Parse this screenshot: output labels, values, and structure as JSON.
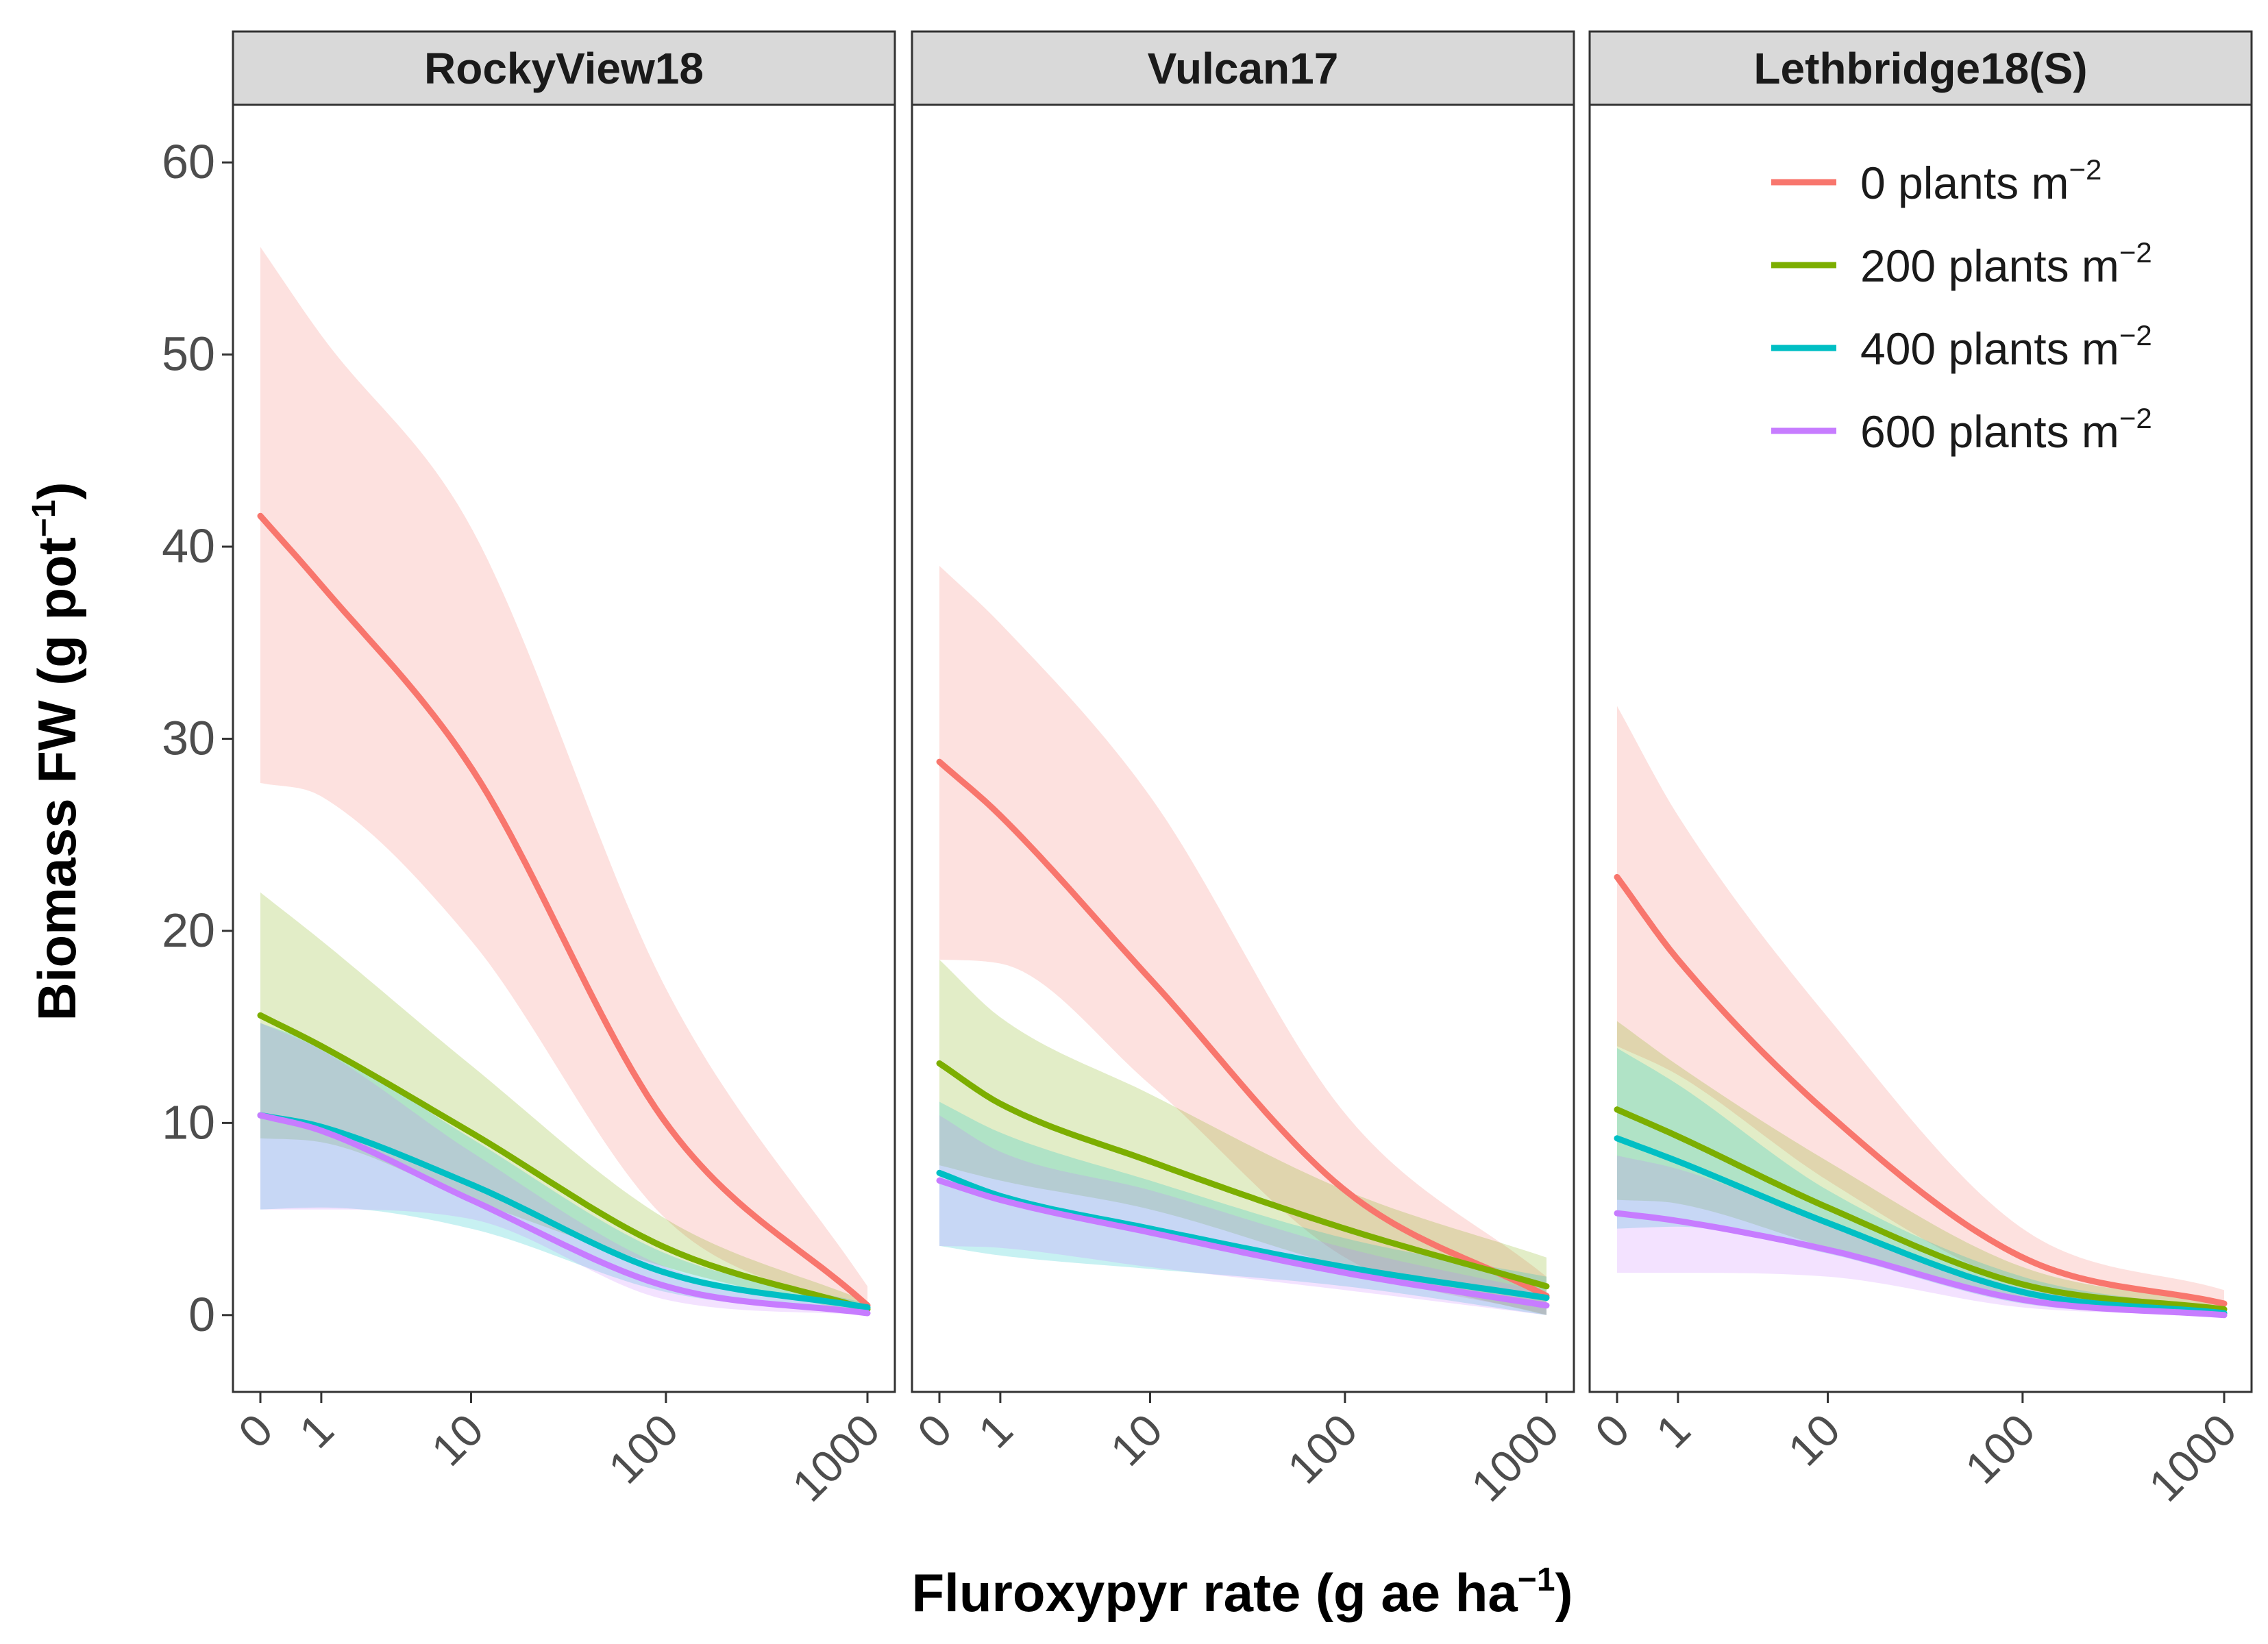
{
  "chart_data": {
    "type": "line",
    "y_axis": {
      "label": "Biomass FW (g  pot",
      "label_sup": "−1",
      "label_close": ")",
      "ylim": [
        -4,
        63
      ],
      "ticks": [
        0,
        10,
        20,
        30,
        40,
        50,
        60
      ],
      "tick_labels": [
        "0",
        "10",
        "20",
        "30",
        "40",
        "50",
        "60"
      ]
    },
    "x_axis": {
      "label": "Fluroxypyr rate (g ae ha",
      "label_sup": "−1",
      "label_close": ")",
      "scale": "pseudo-log",
      "ticks": [
        0,
        1,
        10,
        100,
        1000
      ],
      "tick_labels": [
        "0",
        "1",
        "10",
        "100",
        "1000"
      ]
    },
    "legend": {
      "position": "top-right",
      "unit": "m",
      "unit_sup": "−2",
      "entries": [
        {
          "label": "0 plants",
          "color": "#F8766D"
        },
        {
          "label": "200 plants",
          "color": "#7CAE00"
        },
        {
          "label": "400 plants",
          "color": "#00BFC4"
        },
        {
          "label": "600 plants",
          "color": "#C77CFF"
        }
      ]
    },
    "x": [
      0,
      1,
      10,
      100,
      1000
    ],
    "panels": [
      {
        "title": "RockyView18",
        "series": [
          {
            "name": "0 plants",
            "color": "#F8766D",
            "values": [
              41.6,
              38.0,
              28.5,
              10.0,
              0.5
            ],
            "lower": [
              27.7,
              27.0,
              19.5,
              5.0,
              0.0
            ],
            "upper": [
              55.6,
              51.0,
              41.0,
              17.0,
              1.5
            ]
          },
          {
            "name": "200 plants",
            "color": "#7CAE00",
            "values": [
              15.6,
              14.0,
              9.5,
              3.5,
              0.3
            ],
            "lower": [
              9.2,
              9.0,
              6.0,
              2.5,
              0.0
            ],
            "upper": [
              22.0,
              19.5,
              13.0,
              5.0,
              0.7
            ]
          },
          {
            "name": "400 plants",
            "color": "#00BFC4",
            "values": [
              10.4,
              9.8,
              6.8,
              2.2,
              0.4
            ],
            "lower": [
              5.5,
              5.6,
              4.5,
              1.2,
              0.0
            ],
            "upper": [
              15.2,
              14.0,
              9.2,
              3.2,
              0.6
            ]
          },
          {
            "name": "600 plants",
            "color": "#C77CFF",
            "values": [
              10.4,
              9.6,
              6.0,
              1.5,
              0.1
            ],
            "lower": [
              5.5,
              5.5,
              5.0,
              0.8,
              0.0
            ],
            "upper": [
              15.2,
              13.8,
              8.5,
              2.5,
              0.3
            ]
          }
        ]
      },
      {
        "title": "Vulcan17",
        "series": [
          {
            "name": "0 plants",
            "color": "#F8766D",
            "values": [
              28.8,
              26.0,
              17.5,
              6.5,
              1.0
            ],
            "lower": [
              18.5,
              18.3,
              12.0,
              3.0,
              0.0
            ],
            "upper": [
              39.0,
              36.0,
              27.0,
              10.5,
              2.0
            ]
          },
          {
            "name": "200 plants",
            "color": "#7CAE00",
            "values": [
              13.1,
              11.0,
              8.0,
              4.5,
              1.5
            ],
            "lower": [
              7.8,
              7.0,
              5.5,
              2.5,
              0.0
            ],
            "upper": [
              18.5,
              15.5,
              11.5,
              6.5,
              3.0
            ]
          },
          {
            "name": "400 plants",
            "color": "#00BFC4",
            "values": [
              7.4,
              6.2,
              4.5,
              2.5,
              0.9
            ],
            "lower": [
              3.6,
              3.1,
              2.4,
              1.5,
              0.0
            ],
            "upper": [
              11.1,
              9.5,
              7.0,
              4.0,
              2.0
            ]
          },
          {
            "name": "600 plants",
            "color": "#C77CFF",
            "values": [
              7.0,
              6.0,
              4.3,
              2.2,
              0.5
            ],
            "lower": [
              3.6,
              3.5,
              2.5,
              1.3,
              0.0
            ],
            "upper": [
              10.4,
              8.5,
              6.5,
              3.5,
              1.2
            ]
          }
        ]
      },
      {
        "title": "Lethbridge18(S)",
        "series": [
          {
            "name": "0 plants",
            "color": "#F8766D",
            "values": [
              22.8,
              18.5,
              10.5,
              3.0,
              0.6
            ],
            "lower": [
              14.0,
              12.5,
              7.0,
              1.5,
              0.0
            ],
            "upper": [
              31.7,
              26.0,
              15.5,
              4.5,
              1.3
            ]
          },
          {
            "name": "200 plants",
            "color": "#7CAE00",
            "values": [
              10.7,
              9.3,
              5.6,
              1.6,
              0.3
            ],
            "lower": [
              6.0,
              5.8,
              3.5,
              0.8,
              0.0
            ],
            "upper": [
              15.3,
              13.0,
              8.0,
              2.5,
              0.6
            ]
          },
          {
            "name": "400 plants",
            "color": "#00BFC4",
            "values": [
              9.2,
              8.0,
              4.8,
              1.2,
              0.1
            ],
            "lower": [
              4.5,
              4.6,
              3.2,
              0.6,
              0.0
            ],
            "upper": [
              13.9,
              12.0,
              6.5,
              2.0,
              0.3
            ]
          },
          {
            "name": "600 plants",
            "color": "#C77CFF",
            "values": [
              5.3,
              4.9,
              3.4,
              0.8,
              0.0
            ],
            "lower": [
              2.2,
              2.2,
              2.0,
              0.4,
              0.0
            ],
            "upper": [
              8.3,
              7.6,
              4.8,
              1.4,
              0.1
            ]
          }
        ]
      }
    ]
  }
}
